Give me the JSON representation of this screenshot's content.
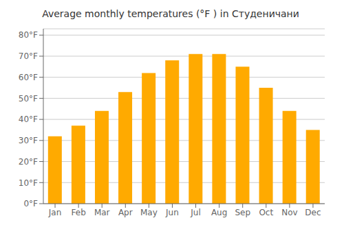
{
  "chart_data": {
    "type": "bar",
    "title": "Average monthly temperatures (°F ) in Студеничани",
    "categories": [
      "Jan",
      "Feb",
      "Mar",
      "Apr",
      "May",
      "Jun",
      "Jul",
      "Aug",
      "Sep",
      "Oct",
      "Nov",
      "Dec"
    ],
    "values": [
      32,
      37,
      44,
      53,
      62,
      68,
      71,
      71,
      65,
      55,
      44,
      35
    ],
    "color": "#FFAA00",
    "ylim": [
      0,
      83
    ],
    "yticks": [
      {
        "value": 0,
        "label": "0°F"
      },
      {
        "value": 10,
        "label": "10°F"
      },
      {
        "value": 20,
        "label": "20°F"
      },
      {
        "value": 30,
        "label": "30°F"
      },
      {
        "value": 40,
        "label": "40°F"
      },
      {
        "value": 50,
        "label": "50°F"
      },
      {
        "value": 60,
        "label": "60°F"
      },
      {
        "value": 70,
        "label": "70°F"
      },
      {
        "value": 80,
        "label": "80°F"
      }
    ],
    "grid": true
  }
}
